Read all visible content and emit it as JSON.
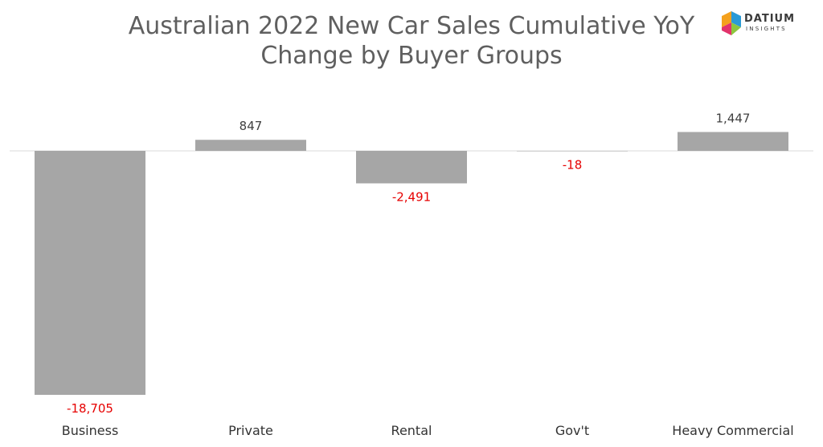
{
  "chart_data": {
    "type": "bar",
    "title_line1": "Australian 2022 New Car Sales Cumulative YoY",
    "title_line2": "Change by Buyer Groups",
    "categories": [
      "Business",
      "Private",
      "Rental",
      "Gov't",
      "Heavy Commercial"
    ],
    "values": [
      -18705,
      847,
      -2491,
      -18,
      1447
    ],
    "value_labels": [
      "-18,705",
      "847",
      "-2,491",
      "-18",
      "1,447"
    ],
    "xlabel": "",
    "ylabel": "",
    "grid": false,
    "colors": {
      "bar": "#a6a6a6",
      "positive_label": "#404040",
      "negative_label": "#e60000",
      "axis": "#d9d9d9"
    }
  },
  "logo": {
    "brand": "DATIUM",
    "tagline": "INSIGHTS",
    "colors": [
      "#f4a11d",
      "#2b9ad6",
      "#e2336b",
      "#8cc63f"
    ]
  }
}
